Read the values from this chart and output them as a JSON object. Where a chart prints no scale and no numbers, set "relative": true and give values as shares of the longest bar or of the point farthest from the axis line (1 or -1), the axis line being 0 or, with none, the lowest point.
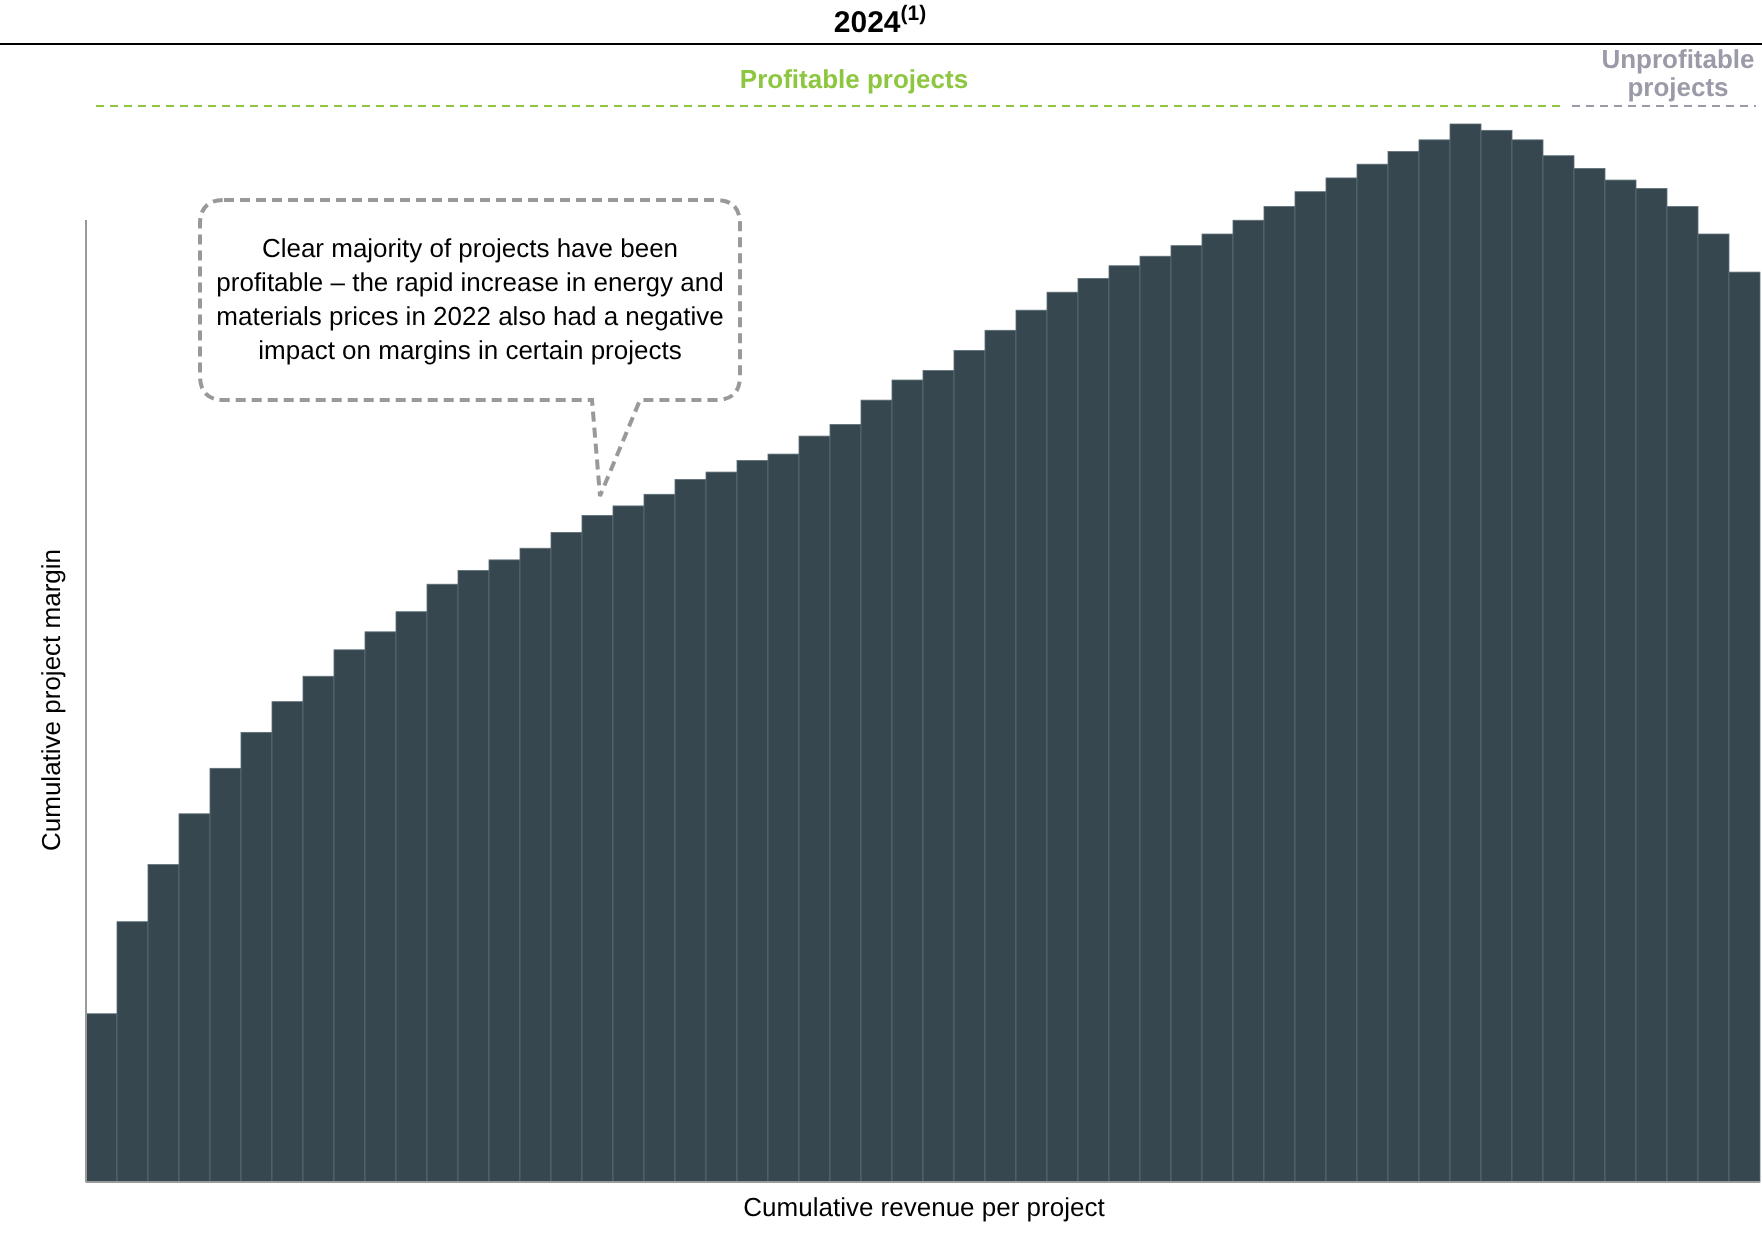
{
  "chart_data": {
    "type": "bar",
    "title": "2024$^{(1)}$",
    "xlabel": "Cumulative revenue per project",
    "ylabel": "Cumulative project margin",
    "relative": true,
    "annotations": [
      "Profitable projects",
      "Unprofitable projects",
      "Clear majority of projects have been profitable – the rapid increase in energy and materials prices in 2022 also had a negative impact on margins in certain projects"
    ],
    "categories": [
      null,
      null,
      null,
      null,
      null,
      null,
      null,
      null,
      null,
      null,
      null,
      null,
      null,
      null,
      null,
      null,
      null,
      null,
      null,
      null,
      null,
      null,
      null,
      null,
      null,
      null,
      null,
      null,
      null,
      null,
      null,
      null,
      null,
      null,
      null,
      null,
      null,
      null,
      null,
      null,
      null,
      null,
      null,
      null,
      null,
      null,
      null,
      null,
      null,
      null,
      null,
      null,
      null,
      null
    ],
    "series": [
      {
        "color": "#37474f",
        "values": [
          0.159,
          0.246,
          0.3,
          0.348,
          0.391,
          0.425,
          0.454,
          0.478,
          0.503,
          0.52,
          0.539,
          0.565,
          0.578,
          0.588,
          0.599,
          0.614,
          0.63,
          0.639,
          0.65,
          0.664,
          0.671,
          0.682,
          0.688,
          0.705,
          0.716,
          0.739,
          0.758,
          0.767,
          0.786,
          0.805,
          0.824,
          0.841,
          0.854,
          0.866,
          0.875,
          0.885,
          0.896,
          0.909,
          0.922,
          0.936,
          0.949,
          0.962,
          0.974,
          0.985,
          1,
          0.994,
          0.985,
          0.97,
          0.958,
          0.947,
          0.939,
          0.922,
          0.896,
          0.86
        ]
      }
    ]
  }
}
